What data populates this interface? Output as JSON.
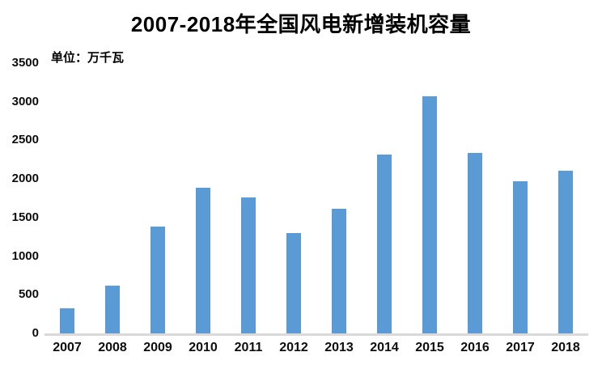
{
  "chart_data": {
    "type": "bar",
    "title": "2007-2018年全国风电新增装机容量",
    "unit_label": "单位：万千瓦",
    "categories": [
      "2007",
      "2008",
      "2009",
      "2010",
      "2011",
      "2012",
      "2013",
      "2014",
      "2015",
      "2016",
      "2017",
      "2018"
    ],
    "values": [
      330,
      620,
      1380,
      1890,
      1760,
      1295,
      1610,
      2320,
      3075,
      2335,
      1965,
      2110
    ],
    "series_name": "风电新增装机容量",
    "xlabel": "",
    "ylabel": "",
    "ylim": [
      0,
      3500
    ],
    "yticks": [
      0,
      500,
      1000,
      1500,
      2000,
      2500,
      3000,
      3500
    ],
    "grid": false,
    "legend": "none",
    "bar_color": "#5B9BD5",
    "axis_line_color": "#D9D9D9",
    "text_color": "#0d0d0d",
    "background_color": "#ffffff"
  }
}
